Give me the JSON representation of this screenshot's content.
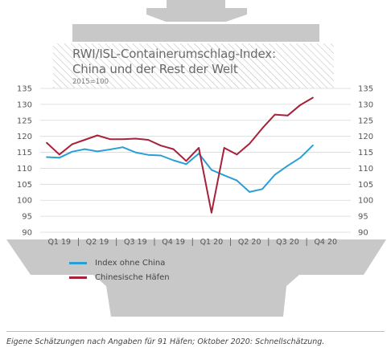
{
  "header": {
    "title_line1": "RWI/ISL-Containerumschlag-Index:",
    "title_line2": "China und der Rest der Welt",
    "subtitle": "2015=100"
  },
  "footnote": "Eigene Schätzungen nach Angaben für 91 Häfen; Oktober 2020: Schnellschätzung.",
  "colors": {
    "ship": "#c8c8c8",
    "grid": "#d8d8d8",
    "index_ohne_china": "#2a9fd6",
    "chinesische_haefen": "#a8213a"
  },
  "chart_data": {
    "type": "line",
    "ylim": [
      90,
      135
    ],
    "yticks": [
      90,
      95,
      100,
      105,
      110,
      115,
      120,
      125,
      130,
      135
    ],
    "xticks": [
      "Q1 19",
      "Q2 19",
      "Q3 19",
      "Q4 19",
      "Q1 20",
      "Q2 20",
      "Q3 20",
      "Q4 20"
    ],
    "x_months": [
      "Jan 19",
      "Feb 19",
      "Mär 19",
      "Apr 19",
      "Mai 19",
      "Jun 19",
      "Jul 19",
      "Aug 19",
      "Sep 19",
      "Okt 19",
      "Nov 19",
      "Dez 19",
      "Jan 20",
      "Feb 20",
      "Mär 20",
      "Apr 20",
      "Mai 20",
      "Jun 20",
      "Jul 20",
      "Aug 20",
      "Sep 20",
      "Okt 20"
    ],
    "series": [
      {
        "name": "Index ohne China",
        "color": "#2a9fd6",
        "values": [
          113.5,
          113.3,
          115.2,
          116.0,
          115.3,
          115.9,
          116.6,
          115.0,
          114.2,
          114.0,
          112.5,
          111.3,
          114.6,
          109.5,
          107.8,
          106.2,
          102.6,
          103.5,
          108.0,
          110.8,
          113.3,
          117.2
        ]
      },
      {
        "name": "Chinesische Häfen",
        "color": "#a8213a",
        "values": [
          118.0,
          114.3,
          117.5,
          118.9,
          120.3,
          119.1,
          119.1,
          119.3,
          118.9,
          117.1,
          116.0,
          112.3,
          116.4,
          96.1,
          116.4,
          114.3,
          117.7,
          122.5,
          126.8,
          126.5,
          129.8,
          132.1
        ]
      }
    ],
    "grid": true,
    "legend": "bottom-left"
  }
}
